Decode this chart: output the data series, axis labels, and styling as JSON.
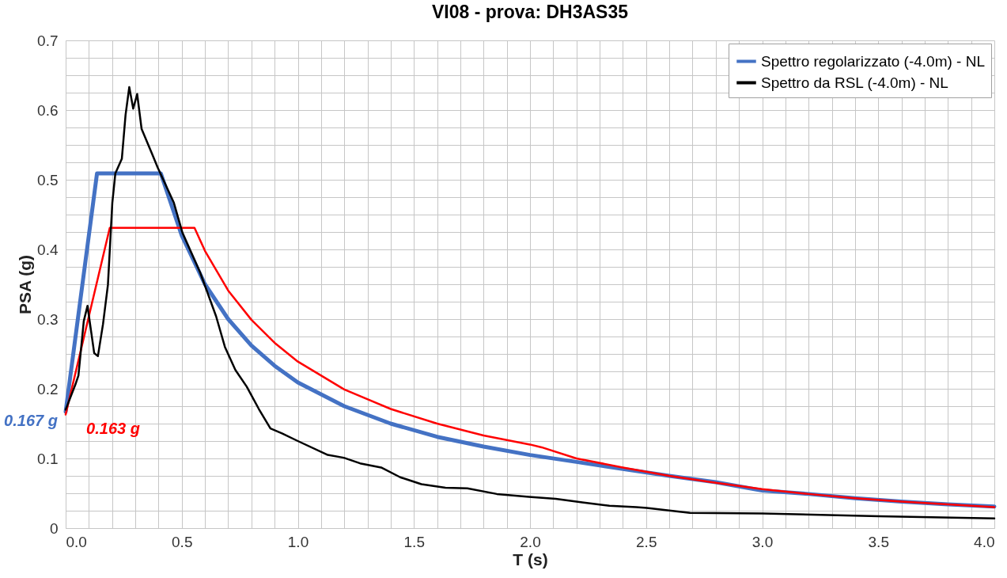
{
  "chart_data": {
    "type": "line",
    "title": "VI08 - prova: DH3AS35",
    "xlabel": "T (s)",
    "ylabel": "PSA (g)",
    "xlim": [
      0,
      4
    ],
    "ylim": [
      0,
      0.7
    ],
    "xticks": [
      {
        "value": 0,
        "label": "0.0"
      },
      {
        "value": 0.1,
        "label": null
      },
      {
        "value": 0.2,
        "label": null
      },
      {
        "value": 0.3,
        "label": null
      },
      {
        "value": 0.4,
        "label": null
      },
      {
        "value": 0.5,
        "label": "0.5"
      },
      {
        "value": 0.6,
        "label": null
      },
      {
        "value": 0.7,
        "label": null
      },
      {
        "value": 0.8,
        "label": null
      },
      {
        "value": 0.9,
        "label": null
      },
      {
        "value": 1,
        "label": "1.0"
      },
      {
        "value": 1.1,
        "label": null
      },
      {
        "value": 1.2,
        "label": null
      },
      {
        "value": 1.3,
        "label": null
      },
      {
        "value": 1.4,
        "label": null
      },
      {
        "value": 1.5,
        "label": "1.5"
      },
      {
        "value": 1.6,
        "label": null
      },
      {
        "value": 1.7,
        "label": null
      },
      {
        "value": 1.8,
        "label": null
      },
      {
        "value": 1.9,
        "label": null
      },
      {
        "value": 2,
        "label": "2.0"
      },
      {
        "value": 2.1,
        "label": null
      },
      {
        "value": 2.2,
        "label": null
      },
      {
        "value": 2.3,
        "label": null
      },
      {
        "value": 2.4,
        "label": null
      },
      {
        "value": 2.5,
        "label": "2.5"
      },
      {
        "value": 2.6,
        "label": null
      },
      {
        "value": 2.7,
        "label": null
      },
      {
        "value": 2.8,
        "label": null
      },
      {
        "value": 2.9,
        "label": null
      },
      {
        "value": 3,
        "label": "3.0"
      },
      {
        "value": 3.1,
        "label": null
      },
      {
        "value": 3.2,
        "label": null
      },
      {
        "value": 3.3,
        "label": null
      },
      {
        "value": 3.4,
        "label": null
      },
      {
        "value": 3.5,
        "label": "3.5"
      },
      {
        "value": 3.6,
        "label": null
      },
      {
        "value": 3.7,
        "label": null
      },
      {
        "value": 3.8,
        "label": null
      },
      {
        "value": 3.9,
        "label": null
      },
      {
        "value": 4,
        "label": "4.0"
      }
    ],
    "yticks": [
      0,
      {
        "value": 0.025,
        "label": null
      },
      {
        "value": 0.05,
        "label": null
      },
      {
        "value": 0.075,
        "label": null
      },
      0.1,
      {
        "value": 0.125,
        "label": null
      },
      {
        "value": 0.15,
        "label": null
      },
      {
        "value": 0.175,
        "label": null
      },
      0.2,
      {
        "value": 0.225,
        "label": null
      },
      {
        "value": 0.25,
        "label": null
      },
      {
        "value": 0.275,
        "label": null
      },
      0.3,
      {
        "value": 0.325,
        "label": null
      },
      {
        "value": 0.35,
        "label": null
      },
      {
        "value": 0.375,
        "label": null
      },
      0.4,
      {
        "value": 0.425,
        "label": null
      },
      {
        "value": 0.45,
        "label": null
      },
      {
        "value": 0.475,
        "label": null
      },
      0.5,
      {
        "value": 0.525,
        "label": null
      },
      {
        "value": 0.55,
        "label": null
      },
      {
        "value": 0.575,
        "label": null
      },
      0.6,
      {
        "value": 0.625,
        "label": null
      },
      {
        "value": 0.65,
        "label": null
      },
      {
        "value": 0.675,
        "label": null
      },
      0.7
    ],
    "grid": true,
    "legend": "top right",
    "marker": "none",
    "line_style": "solid",
    "series": [
      {
        "name": "Spettro regolarizzato (-4.0m) - NL",
        "color": "#4472c4",
        "x": [
          0,
          0.135,
          0.41,
          0.5,
          0.6,
          0.7,
          0.8,
          0.9,
          1.0,
          1.2,
          1.4,
          1.6,
          1.8,
          2.0,
          2.2,
          2.4,
          2.6,
          2.8,
          3.0,
          3.2,
          3.4,
          3.6,
          3.8,
          4.0
        ],
        "values": [
          0.167,
          0.509,
          0.509,
          0.42,
          0.35,
          0.3,
          0.262,
          0.233,
          0.209,
          0.175,
          0.15,
          0.131,
          0.117,
          0.105,
          0.095,
          0.085,
          0.075,
          0.066,
          0.054,
          0.049,
          0.043,
          0.038,
          0.034,
          0.031
        ]
      },
      {
        "color": "#ff0000",
        "x": [
          0,
          0.19,
          0.555,
          0.6,
          0.7,
          0.8,
          0.9,
          1.0,
          1.2,
          1.4,
          1.6,
          1.8,
          2.0,
          2.05,
          2.2,
          2.4,
          2.6,
          2.8,
          3.0,
          3.2,
          3.4,
          3.6,
          3.8,
          4.0
        ],
        "values": [
          0.163,
          0.431,
          0.431,
          0.398,
          0.341,
          0.299,
          0.266,
          0.239,
          0.199,
          0.171,
          0.15,
          0.133,
          0.12,
          0.116,
          0.1,
          0.087,
          0.075,
          0.065,
          0.056,
          0.049,
          0.043,
          0.038,
          0.034,
          0.03
        ]
      },
      {
        "name": "Spettro da RSL (-4.0m) - NL",
        "color": "#000000",
        "x": [
          0,
          0.044,
          0.055,
          0.078,
          0.094,
          0.123,
          0.139,
          0.161,
          0.182,
          0.201,
          0.214,
          0.242,
          0.258,
          0.274,
          0.291,
          0.308,
          0.327,
          0.371,
          0.397,
          0.466,
          0.503,
          0.579,
          0.648,
          0.686,
          0.731,
          0.78,
          0.832,
          0.882,
          0.932,
          1.0,
          1.129,
          1.198,
          1.268,
          1.359,
          1.441,
          1.532,
          1.636,
          1.73,
          1.857,
          1.995,
          2.111,
          2.225,
          2.342,
          2.458,
          2.503,
          2.689,
          3.0,
          3.503,
          4.0
        ],
        "values": [
          0.17,
          0.208,
          0.219,
          0.297,
          0.319,
          0.251,
          0.247,
          0.293,
          0.349,
          0.467,
          0.509,
          0.53,
          0.593,
          0.633,
          0.602,
          0.623,
          0.573,
          0.538,
          0.517,
          0.467,
          0.424,
          0.367,
          0.304,
          0.26,
          0.227,
          0.203,
          0.171,
          0.143,
          0.136,
          0.125,
          0.105,
          0.101,
          0.093,
          0.087,
          0.073,
          0.063,
          0.058,
          0.057,
          0.049,
          0.045,
          0.042,
          0.037,
          0.032,
          0.03,
          0.029,
          0.022,
          0.021,
          0.017,
          0.014
        ]
      }
    ],
    "annotations": [
      {
        "text": "0.167 g",
        "x": 0,
        "y": 0.167
      },
      {
        "text": "0.163 g",
        "x": 0,
        "y": 0.163
      }
    ]
  }
}
